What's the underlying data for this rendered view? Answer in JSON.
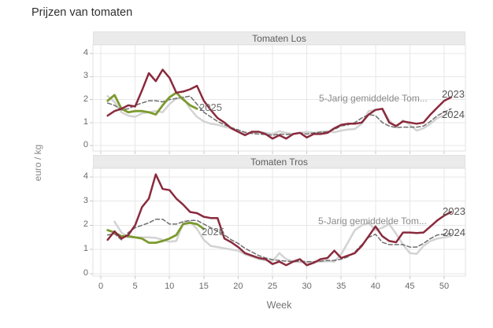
{
  "title": "Prijzen van tomaten",
  "colors": {
    "line_2023": "#8A2A3D",
    "line_2024": "#D3D3D3",
    "line_2025": "#7C9A2D",
    "line_avg": "#6F6F6F",
    "strip_bg": "#EBEBEB",
    "panel_border": "#E2E2E2",
    "grid": "#E7E7E7",
    "tick": "#C9C9C9",
    "plot_bg": "#FFFFFF"
  },
  "chart_data": [
    {
      "type": "line",
      "title": "Tomaten Los",
      "xlabel": "Week",
      "ylabel": "euro / kg",
      "x_ticks": [
        0,
        5,
        10,
        15,
        20,
        25,
        30,
        35,
        40,
        45,
        50
      ],
      "y_ticks": [
        0,
        1,
        2,
        3,
        4
      ],
      "xlim": [
        0,
        53
      ],
      "ylim": [
        0,
        4.4
      ],
      "grid": true,
      "annotations": {
        "avg_label": "5-Jarig gemiddelde Tom...",
        "label_2023": "2023",
        "label_2024": "2024",
        "label_2025": "2025"
      },
      "series": [
        {
          "name": "2023",
          "style": "solid",
          "x_start": 1,
          "values": [
            1.3,
            1.5,
            1.6,
            1.75,
            1.7,
            2.4,
            3.15,
            2.8,
            3.3,
            2.95,
            2.3,
            2.35,
            2.45,
            2.6,
            1.95,
            1.55,
            1.2,
            1.0,
            0.75,
            0.6,
            0.45,
            0.6,
            0.6,
            0.5,
            0.3,
            0.45,
            0.3,
            0.5,
            0.55,
            0.35,
            0.5,
            0.5,
            0.55,
            0.75,
            0.9,
            0.95,
            0.95,
            1.0,
            1.35,
            1.55,
            1.6,
            1.0,
            0.85,
            1.05,
            1.0,
            0.95,
            1.0,
            1.35,
            1.65,
            1.95,
            2.1
          ]
        },
        {
          "name": "2024",
          "style": "solid",
          "x_start": 1,
          "values": [
            2.15,
            1.9,
            1.45,
            1.3,
            1.25,
            1.4,
            1.45,
            1.5,
            1.45,
            1.8,
            2.05,
            2.1,
            1.6,
            1.25,
            1.05,
            0.95,
            0.9,
            0.82,
            0.75,
            0.62,
            0.5,
            0.55,
            0.6,
            0.55,
            0.5,
            0.62,
            0.55,
            0.5,
            0.55,
            0.6,
            0.55,
            0.6,
            0.62,
            0.58,
            0.65,
            0.7,
            0.72,
            0.95,
            1.5,
            1.55,
            1.6,
            1.1,
            0.8,
            1.1,
            0.9,
            0.65,
            0.75,
            0.95,
            1.2,
            1.3,
            1.45
          ]
        },
        {
          "name": "5-Jarig gemiddelde Tom...",
          "style": "dashed",
          "x_start": 1,
          "values": [
            1.85,
            1.75,
            1.55,
            1.6,
            1.75,
            1.85,
            1.95,
            1.95,
            1.9,
            2.0,
            2.05,
            2.1,
            2.15,
            1.8,
            1.45,
            1.25,
            1.05,
            0.9,
            0.78,
            0.68,
            0.58,
            0.52,
            0.5,
            0.48,
            0.45,
            0.5,
            0.48,
            0.5,
            0.55,
            0.5,
            0.55,
            0.58,
            0.6,
            0.7,
            0.85,
            0.9,
            1.0,
            1.2,
            1.35,
            1.3,
            1.0,
            0.85,
            0.78,
            0.8,
            0.8,
            0.8,
            0.85,
            1.05,
            1.3,
            1.45,
            1.6
          ]
        },
        {
          "name": "2025",
          "style": "solid",
          "x_start": 1,
          "values": [
            1.95,
            2.2,
            1.6,
            1.45,
            1.5,
            1.5,
            1.45,
            1.35,
            1.75,
            2.1,
            2.3,
            2.0,
            1.75,
            1.6
          ]
        }
      ]
    },
    {
      "type": "line",
      "title": "Tomaten Tros",
      "xlabel": "Week",
      "ylabel": "euro / kg",
      "x_ticks": [
        0,
        5,
        10,
        15,
        20,
        25,
        30,
        35,
        40,
        45,
        50
      ],
      "y_ticks": [
        0,
        1,
        2,
        3,
        4
      ],
      "xlim": [
        0,
        53
      ],
      "ylim": [
        0,
        4.4
      ],
      "grid": true,
      "annotations": {
        "avg_label": "5-Jarig gemiddelde Tom...",
        "label_2023": "2023",
        "label_2024": "2024",
        "label_2025": "2025"
      },
      "series": [
        {
          "name": "2023",
          "style": "solid",
          "x_start": 1,
          "values": [
            1.4,
            1.75,
            1.45,
            1.6,
            2.0,
            2.75,
            3.1,
            4.1,
            3.5,
            3.45,
            3.1,
            2.85,
            2.55,
            2.5,
            2.35,
            2.3,
            2.3,
            1.45,
            1.3,
            1.1,
            0.85,
            0.75,
            0.65,
            0.6,
            0.4,
            0.5,
            0.35,
            0.5,
            0.6,
            0.35,
            0.45,
            0.6,
            0.65,
            0.95,
            0.65,
            0.75,
            0.85,
            1.15,
            1.55,
            1.95,
            1.55,
            1.35,
            1.3,
            1.7,
            1.7,
            1.68,
            1.7,
            1.95,
            2.2,
            2.4,
            2.55
          ]
        },
        {
          "name": "2024",
          "style": "solid",
          "x_start": 2,
          "values": [
            2.15,
            1.7,
            1.5,
            1.5,
            1.5,
            1.5,
            1.48,
            1.4,
            1.32,
            1.35,
            2.1,
            2.15,
            1.85,
            1.4,
            1.15,
            1.1,
            1.05,
            1.0,
            0.95,
            0.8,
            0.7,
            0.6,
            0.55,
            0.52,
            0.85,
            0.6,
            0.5,
            0.48,
            0.45,
            0.48,
            0.5,
            0.52,
            0.5,
            0.8,
            1.3,
            1.8,
            2.0,
            2.1,
            1.8,
            1.9,
            2.05,
            1.65,
            1.2,
            0.85,
            0.82,
            1.15,
            1.35,
            1.45,
            1.5,
            1.55
          ]
        },
        {
          "name": "5-Jarig gemiddelde Tom...",
          "style": "dashed",
          "x_start": 1,
          "values": [
            1.6,
            1.65,
            1.4,
            1.7,
            1.9,
            2.0,
            2.1,
            2.25,
            2.25,
            2.05,
            2.05,
            2.15,
            2.2,
            2.2,
            2.05,
            1.9,
            1.75,
            1.6,
            1.4,
            1.25,
            1.05,
            0.9,
            0.75,
            0.65,
            0.58,
            0.55,
            0.52,
            0.5,
            0.52,
            0.5,
            0.5,
            0.52,
            0.55,
            0.55,
            0.6,
            0.7,
            0.9,
            1.2,
            1.5,
            1.63,
            1.3,
            1.2,
            1.2,
            1.2,
            1.1,
            1.1,
            1.25,
            1.45,
            1.6,
            1.63,
            1.65
          ]
        },
        {
          "name": "2025",
          "style": "solid",
          "x_start": 1,
          "values": [
            1.8,
            1.7,
            1.55,
            1.55,
            1.5,
            1.45,
            1.28,
            1.28,
            1.35,
            1.45,
            1.6,
            2.05,
            2.1,
            2.05,
            1.85
          ]
        }
      ]
    }
  ]
}
